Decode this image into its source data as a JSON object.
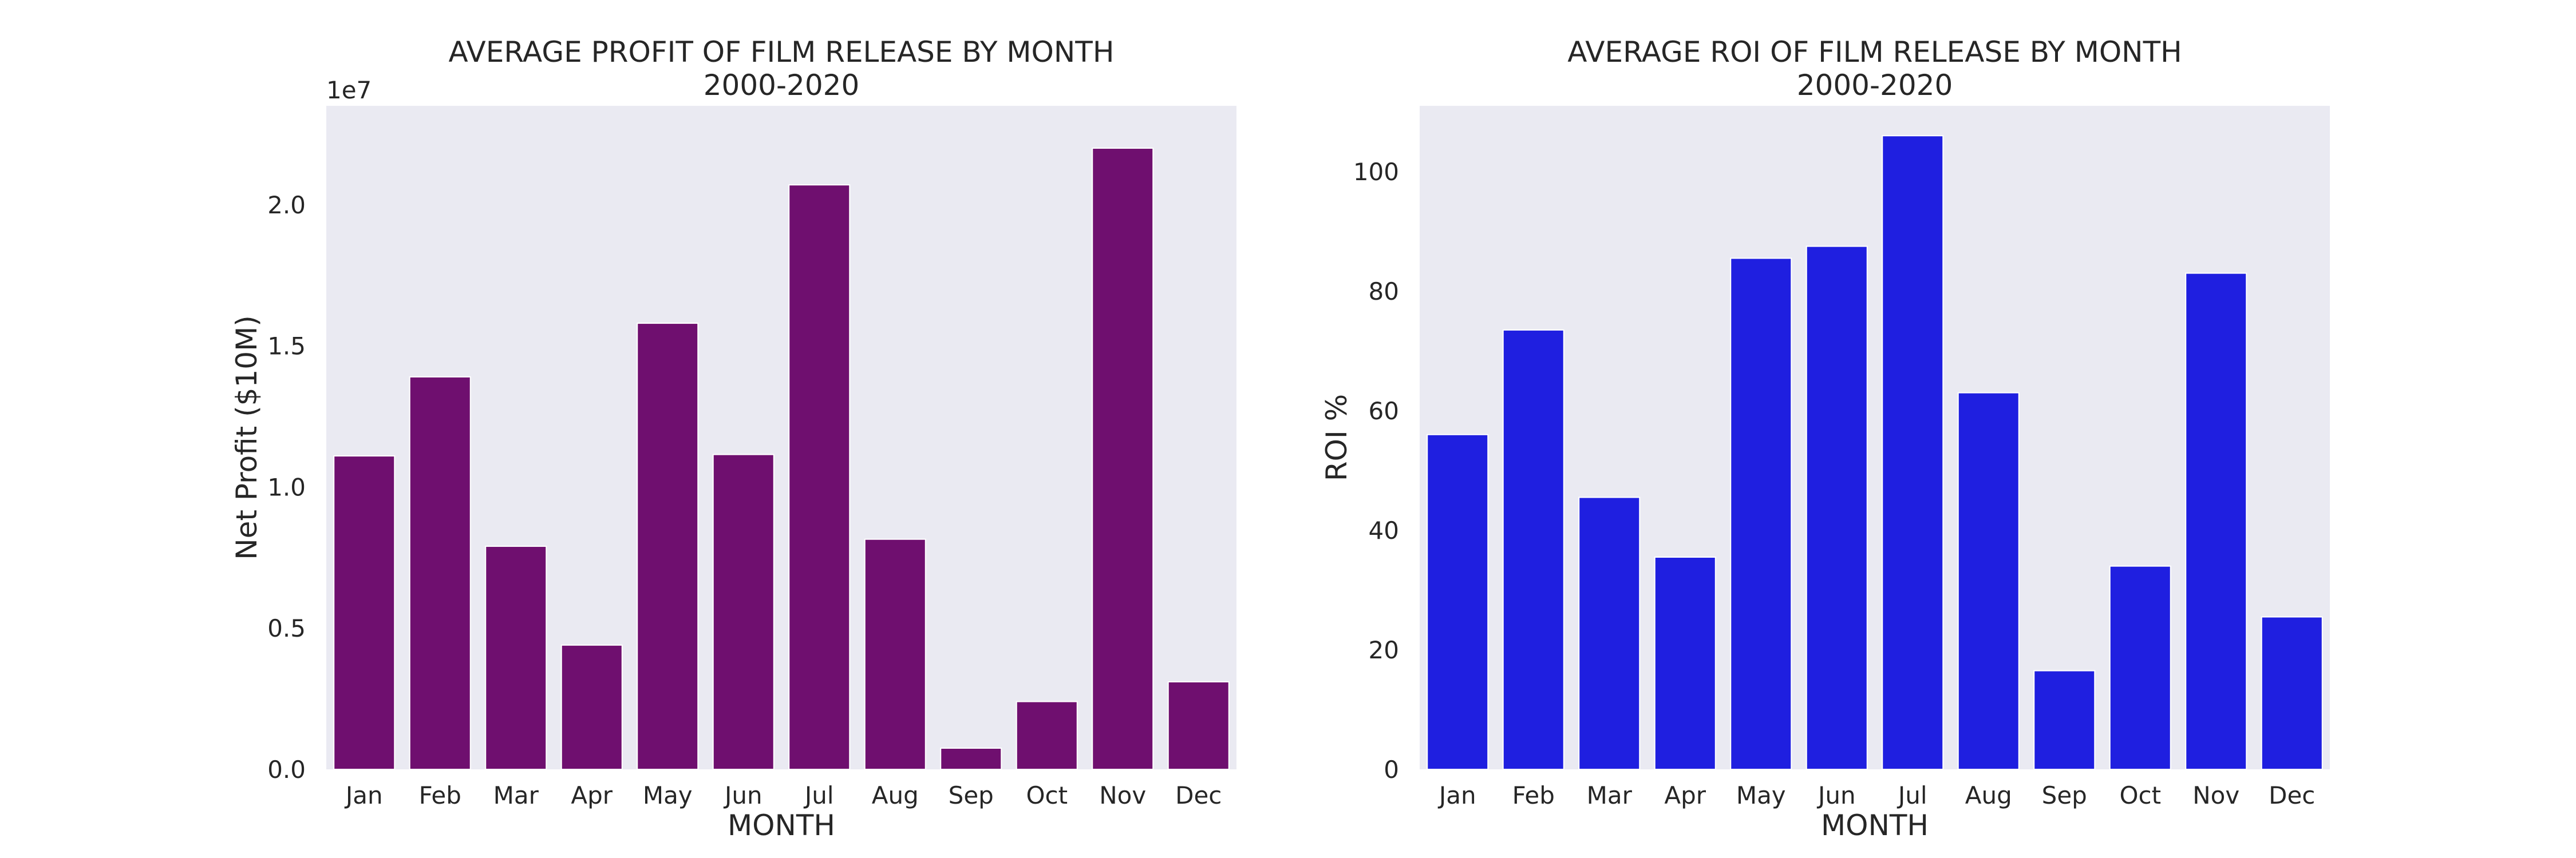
{
  "chart_data": [
    {
      "type": "bar",
      "title": [
        "AVERAGE PROFIT OF FILM RELEASE BY MONTH",
        "2000-2020"
      ],
      "xlabel": "MONTH",
      "ylabel": "Net Profit ($10M)",
      "y_offset_label": "1e7",
      "categories": [
        "Jan",
        "Feb",
        "Mar",
        "Apr",
        "May",
        "Jun",
        "Jul",
        "Aug",
        "Sep",
        "Oct",
        "Nov",
        "Dec"
      ],
      "values": [
        1.11,
        1.39,
        0.79,
        0.44,
        1.58,
        1.115,
        2.07,
        0.815,
        0.075,
        0.24,
        2.2,
        0.31
      ],
      "ylim": [
        0,
        2.35
      ],
      "yticks": [
        0.0,
        0.5,
        1.0,
        1.5,
        2.0
      ],
      "ytick_labels": [
        "0.0",
        "0.5",
        "1.0",
        "1.5",
        "2.0"
      ],
      "bar_color": "#6f0f6f",
      "background_color": "#eaeaf2",
      "grid": false
    },
    {
      "type": "bar",
      "title": [
        "AVERAGE ROI OF FILM RELEASE BY MONTH",
        "2000-2020"
      ],
      "xlabel": "MONTH",
      "ylabel": "ROI %",
      "categories": [
        "Jan",
        "Feb",
        "Mar",
        "Apr",
        "May",
        "Jun",
        "Jul",
        "Aug",
        "Sep",
        "Oct",
        "Nov",
        "Dec"
      ],
      "values": [
        56,
        73.5,
        45.5,
        35.5,
        85.5,
        87.5,
        106,
        63,
        16.5,
        34,
        83,
        25.5
      ],
      "ylim": [
        0,
        111
      ],
      "yticks": [
        0,
        20,
        40,
        60,
        80,
        100
      ],
      "ytick_labels": [
        "0",
        "20",
        "40",
        "60",
        "80",
        "100"
      ],
      "bar_color": "#1f1fe0",
      "background_color": "#eaeaf2",
      "grid": false
    }
  ]
}
